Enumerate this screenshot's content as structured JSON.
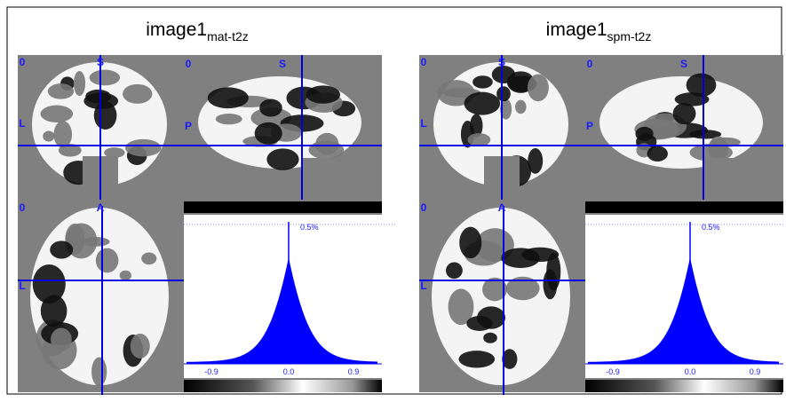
{
  "panels": [
    {
      "title": "image1",
      "subscript": "mat-t2z",
      "labels": [
        "0",
        "S",
        "L",
        "0",
        "S",
        "P",
        "0",
        "A",
        "L"
      ],
      "histogram": {
        "peak_label": "0.5%",
        "ticks": [
          "-0.9",
          "0.0",
          "0.9"
        ]
      }
    },
    {
      "title": "image1",
      "subscript": "spm-t2z",
      "labels": [
        "0",
        "S",
        "L",
        "0",
        "S",
        "P",
        "0",
        "A",
        "L"
      ],
      "histogram": {
        "peak_label": "0.5%",
        "ticks": [
          "-0.9",
          "0.0",
          "0.9"
        ]
      }
    }
  ]
}
